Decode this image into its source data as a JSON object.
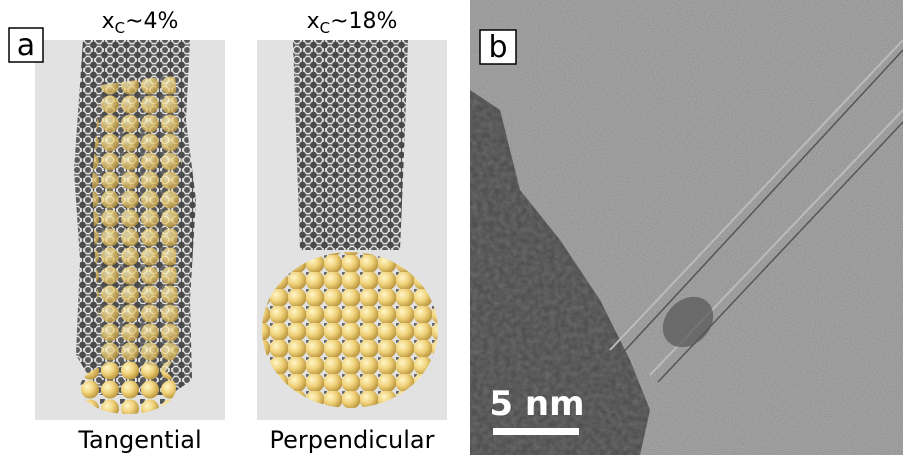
{
  "panels": [
    {
      "label": "a",
      "columns": [
        {
          "composition": {
            "symbol": "x",
            "subscript": "C",
            "value": "~4%"
          },
          "caption": "Tangential"
        },
        {
          "composition": {
            "symbol": "x",
            "subscript": "C",
            "value": "~18%"
          },
          "caption": "Perpendicular"
        }
      ]
    },
    {
      "label": "b",
      "scale_bar": "5 nm"
    }
  ]
}
